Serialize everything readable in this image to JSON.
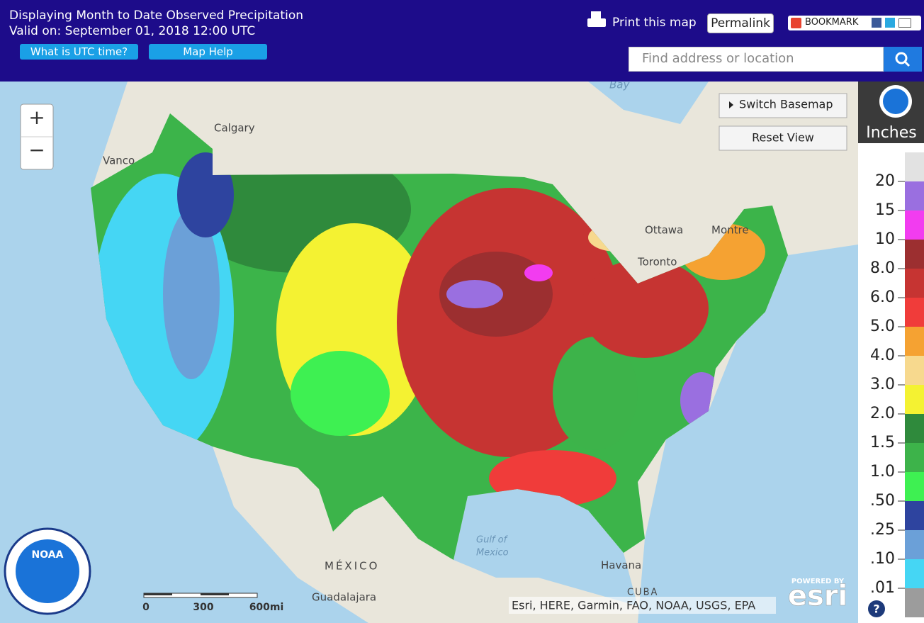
{
  "header": {
    "title_line1": "Displaying Month to Date Observed Precipitation",
    "title_line2": "Valid on: September 01, 2018 12:00 UTC",
    "utc_button": "What is UTC time?",
    "help_button": "Map Help",
    "print": "Print this map",
    "permalink": "Permalink",
    "bookmark": "BOOKMARK",
    "search_placeholder": "Find address or location"
  },
  "map": {
    "controls": {
      "zoom_in": "+",
      "zoom_out": "−",
      "switch_basemap": "Switch Basemap",
      "reset_view": "Reset View"
    },
    "labels": {
      "calgary": "Calgary",
      "vancouver": "Vanco",
      "ottawa": "Ottawa",
      "montreal": "Montre",
      "toronto": "Toronto",
      "gulf1": "Gulf of",
      "gulf2": "Mexico",
      "mexico": "MÉXICO",
      "guadalajara": "Guadalajara",
      "havana": "Havana",
      "cuba": "CUBA",
      "bay": "Bay"
    },
    "scale": [
      "0",
      "300",
      "600mi"
    ],
    "attribution": "Esri, HERE, Garmin, FAO, NOAA, USGS, EPA",
    "esri_powered": "POWERED BY",
    "esri": "esri",
    "noaa": "NOAA",
    "help": "?"
  },
  "legend": {
    "unit": "Inches",
    "labels": [
      "20",
      "15",
      "10",
      "8.0",
      "6.0",
      "5.0",
      "4.0",
      "3.0",
      "2.0",
      "1.5",
      "1.0",
      ".50",
      ".25",
      ".10",
      ".01"
    ],
    "colors": [
      "#e2e2e2",
      "#9a6fe0",
      "#f23cf0",
      "#9c2f30",
      "#c63432",
      "#f03c3a",
      "#f5a232",
      "#f7d98e",
      "#f4f232",
      "#2f8a3c",
      "#3db34a",
      "#3ef052",
      "#2e449f",
      "#6ba0d8",
      "#45d6f4",
      "#9c9c9c"
    ]
  }
}
